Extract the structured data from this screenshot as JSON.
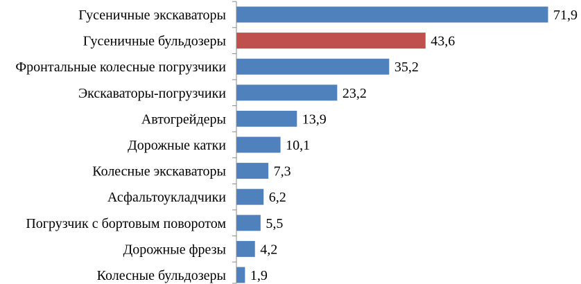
{
  "chart_data": {
    "type": "bar",
    "orientation": "horizontal",
    "categories": [
      "Гусеничные экскаваторы",
      "Гусеничные бульдозеры",
      "Фронтальные колесные погрузчики",
      "Экскаваторы-погрузчики",
      "Автогрейдеры",
      "Дорожные катки",
      "Колесные экскаваторы",
      "Асфальтоукладчики",
      "Погрузчик с бортовым поворотом",
      "Дорожные фрезы",
      "Колесные бульдозеры"
    ],
    "values": [
      71.9,
      43.6,
      35.2,
      23.2,
      13.9,
      10.1,
      7.3,
      6.2,
      5.5,
      4.2,
      1.9
    ],
    "value_labels": [
      "71,9",
      "43,6",
      "35,2",
      "23,2",
      "13,9",
      "10,1",
      "7,3",
      "6,2",
      "5,5",
      "4,2",
      "1,9"
    ],
    "highlight_index": 1,
    "colors": {
      "bar": "#4f81bd",
      "highlight": "#c0504d",
      "axis": "#888888"
    },
    "xlim": [
      0,
      71.9
    ],
    "grid": false,
    "legend": "none"
  }
}
